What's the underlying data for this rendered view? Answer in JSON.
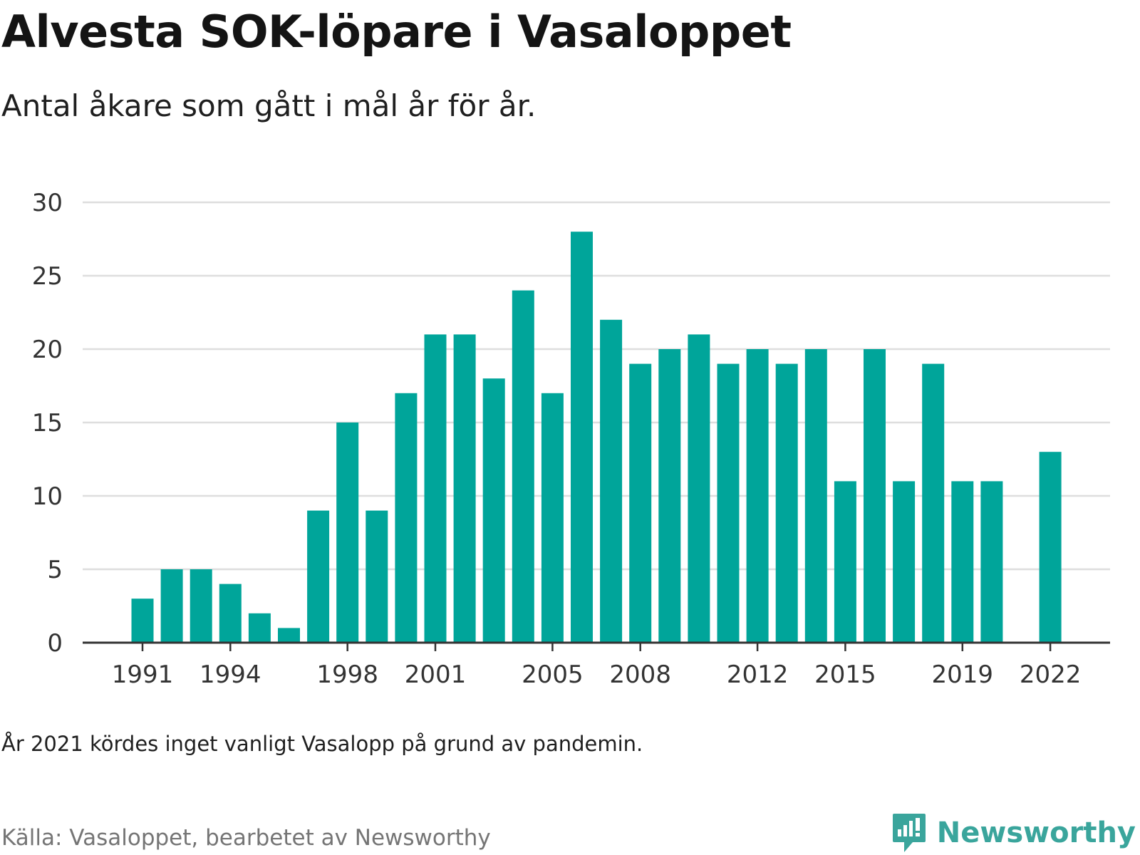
{
  "title": "Alvesta SOK-löpare i Vasaloppet",
  "subtitle": "Antal åkare som gått i mål år för år.",
  "note": "År 2021 kördes inget vanligt Vasalopp på grund av pandemin.",
  "source": "Källa: Vasaloppet, bearbetet av Newsworthy",
  "brand": "Newsworthy",
  "colors": {
    "bar": "#00a59a",
    "grid": "#dedede",
    "axis": "#333333",
    "brand": "#3aa59c"
  },
  "chart_data": {
    "type": "bar",
    "title": "Alvesta SOK-löpare i Vasaloppet",
    "subtitle": "Antal åkare som gått i mål år för år.",
    "xlabel": "",
    "ylabel": "",
    "ylim": [
      0,
      30
    ],
    "yticks": [
      0,
      5,
      10,
      15,
      20,
      25,
      30
    ],
    "xticks": [
      1991,
      1994,
      1998,
      2001,
      2005,
      2008,
      2012,
      2015,
      2019,
      2022
    ],
    "grid": true,
    "legend": "none",
    "categories": [
      1991,
      1992,
      1993,
      1994,
      1995,
      1996,
      1997,
      1998,
      1999,
      2000,
      2001,
      2002,
      2003,
      2004,
      2005,
      2006,
      2007,
      2008,
      2009,
      2010,
      2011,
      2012,
      2013,
      2014,
      2015,
      2016,
      2017,
      2018,
      2019,
      2020,
      2021,
      2022
    ],
    "values": [
      3,
      5,
      5,
      4,
      2,
      1,
      9,
      15,
      9,
      17,
      21,
      21,
      18,
      24,
      17,
      28,
      22,
      19,
      20,
      21,
      19,
      20,
      19,
      20,
      11,
      20,
      11,
      19,
      11,
      11,
      null,
      13
    ]
  }
}
